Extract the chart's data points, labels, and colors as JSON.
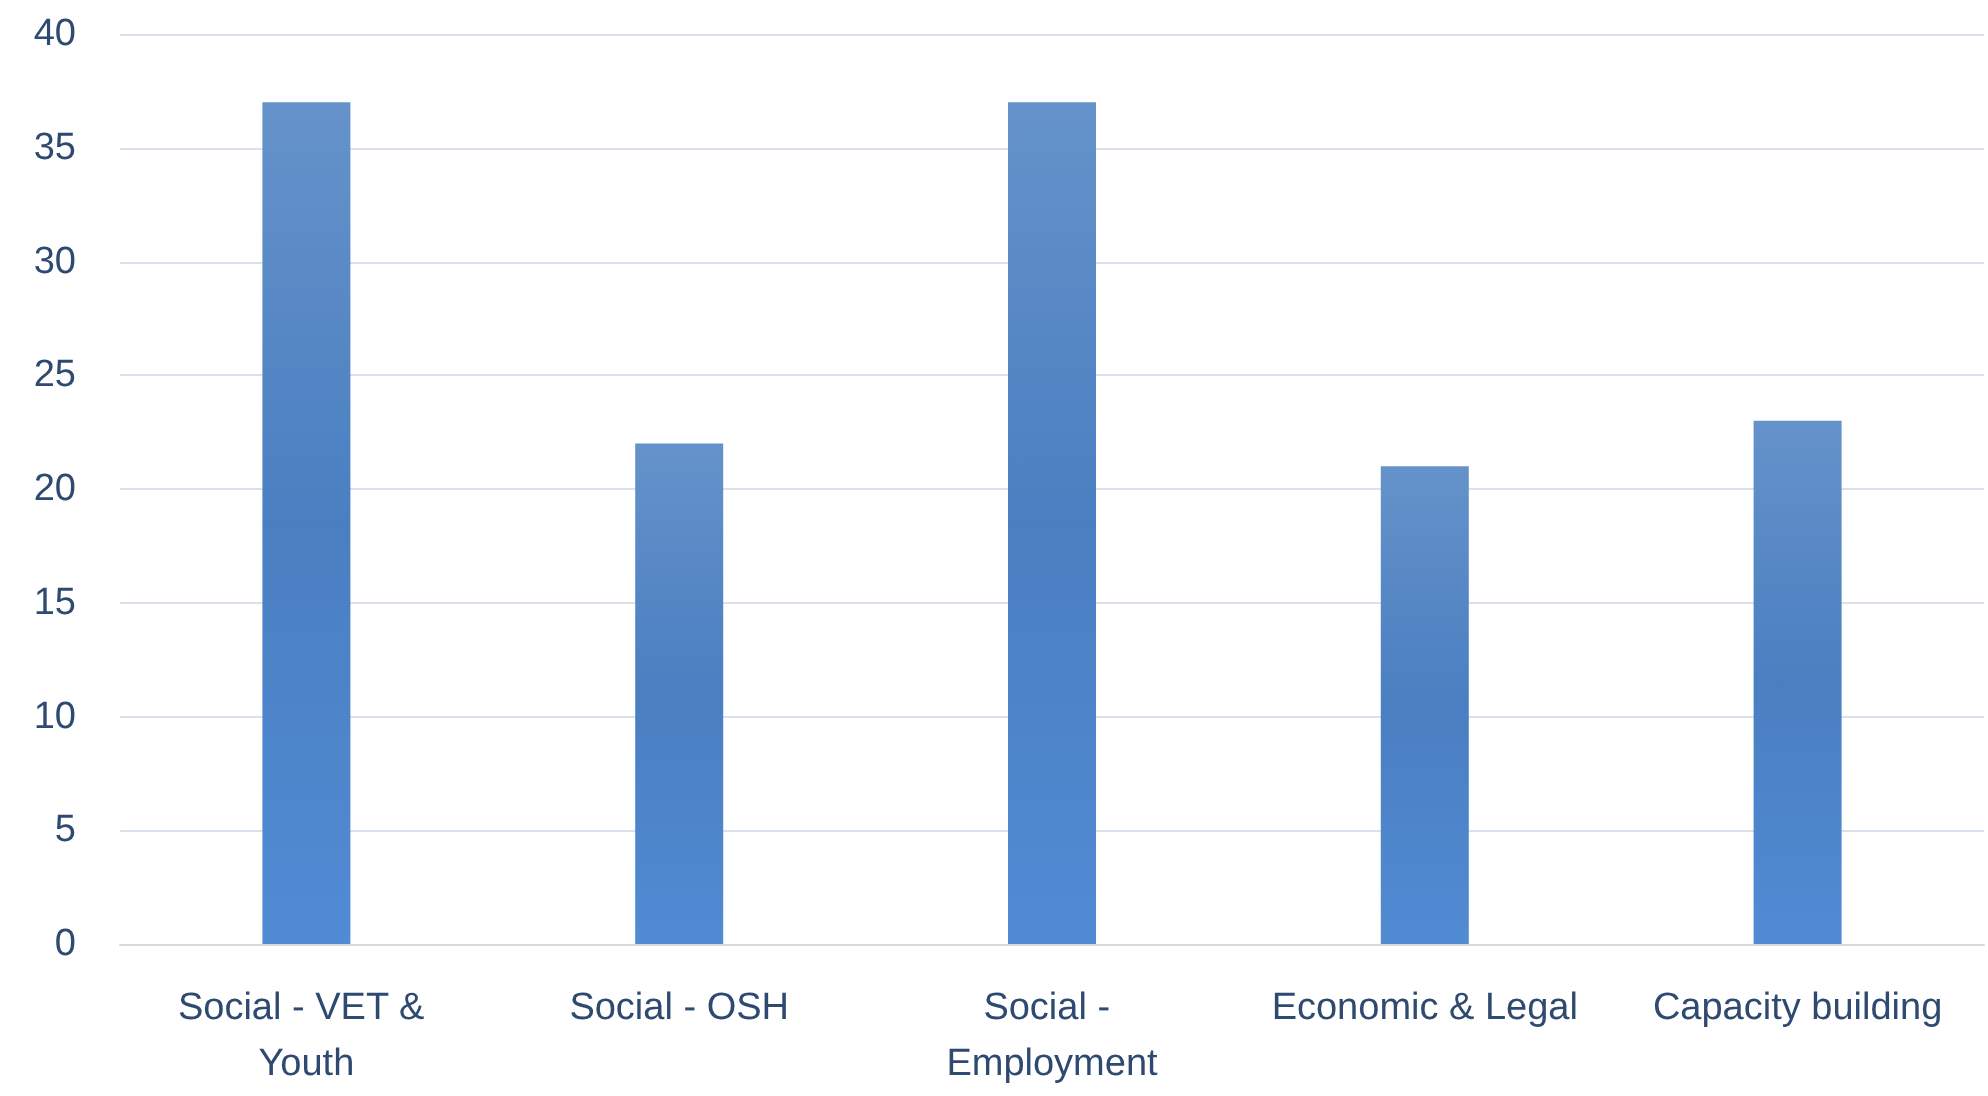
{
  "chart_data": {
    "type": "bar",
    "categories": [
      "Social - VET & Youth",
      "Social - OSH",
      "Social - Employment",
      "Economic & Legal",
      "Capacity building"
    ],
    "values": [
      37,
      22,
      37,
      21,
      23
    ],
    "color": "#4a7fc1",
    "ylim": [
      0,
      40
    ],
    "yticks": [
      0,
      5,
      10,
      15,
      20,
      25,
      30,
      35,
      40
    ],
    "grid": "y"
  }
}
